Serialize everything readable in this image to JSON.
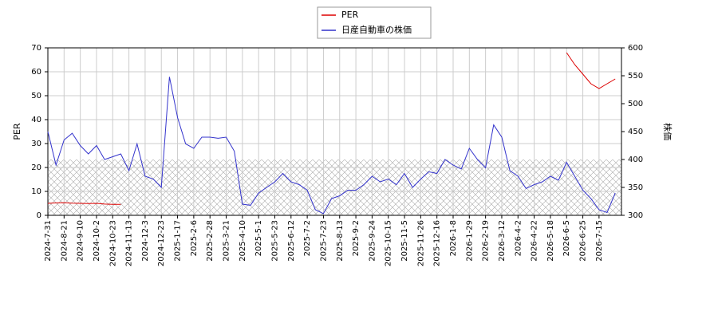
{
  "chart_data": {
    "type": "line",
    "categories": [
      "2024-7-31",
      null,
      "2024-8-21",
      null,
      "2024-9-10",
      null,
      "2024-10-2",
      null,
      "2024-10-23",
      null,
      "2024-11-13",
      null,
      "2024-12-3",
      null,
      "2024-12-23",
      null,
      "2025-1-17",
      null,
      "2025-2-6",
      null,
      "2025-2-28",
      null,
      "2025-3-21",
      null,
      "2025-4-10",
      null,
      "2025-5-1",
      null,
      "2025-5-23",
      null,
      "2025-6-12",
      null,
      "2025-7-2",
      null,
      "2025-7-23",
      null,
      "2025-8-13",
      null,
      "2025-9-2",
      null,
      "2025-9-24",
      null,
      "2025-10-15",
      null,
      "2025-11-5",
      null,
      "2025-11-26",
      null,
      "2025-12-16",
      null,
      "2026-1-8",
      null,
      "2026-1-29",
      null,
      "2026-2-19",
      null,
      "2026-3-12",
      null,
      "2026-4-2",
      null,
      "2026-4-22",
      null,
      "2026-5-18",
      null,
      "2026-6-5",
      null,
      "2026-6-25",
      null,
      "2026-7-15",
      null,
      null
    ],
    "series": [
      {
        "name": "PER",
        "color": "#dd0000",
        "axis": "y",
        "values": [
          5,
          5.2,
          5.3,
          5.1,
          5.0,
          4.9,
          5.0,
          4.7,
          4.6,
          4.6,
          null,
          null,
          null,
          null,
          null,
          null,
          null,
          null,
          null,
          null,
          null,
          null,
          null,
          null,
          null,
          null,
          null,
          null,
          null,
          null,
          null,
          null,
          null,
          null,
          null,
          null,
          null,
          null,
          null,
          null,
          null,
          null,
          null,
          null,
          null,
          null,
          null,
          null,
          null,
          null,
          null,
          null,
          null,
          null,
          null,
          null,
          null,
          null,
          null,
          null,
          null,
          null,
          null,
          null,
          68,
          63,
          59,
          55,
          53,
          55,
          57
        ]
      },
      {
        "name": "日産自動車の株価",
        "color": "#3333cc",
        "axis": "y2",
        "values": [
          450,
          390,
          435,
          447,
          425,
          410,
          425,
          400,
          405,
          410,
          380,
          428,
          370,
          365,
          350,
          548,
          475,
          428,
          420,
          440,
          440,
          438,
          440,
          415,
          320,
          318,
          340,
          350,
          360,
          375,
          360,
          355,
          345,
          310,
          303,
          330,
          335,
          345,
          345,
          355,
          370,
          360,
          365,
          355,
          375,
          350,
          365,
          378,
          375,
          400,
          390,
          383,
          420,
          400,
          385,
          462,
          440,
          380,
          370,
          348,
          355,
          360,
          370,
          363,
          395,
          370,
          345,
          330,
          310,
          305,
          340
        ]
      }
    ],
    "y_label": "PER",
    "y2_label": "株価",
    "ylim": [
      0,
      70
    ],
    "yticks": [
      0,
      10,
      20,
      30,
      40,
      50,
      60,
      70
    ],
    "y2lim": [
      300,
      600
    ],
    "y2ticks": [
      300,
      350,
      400,
      450,
      500,
      550,
      600
    ],
    "band": {
      "axis": "y2",
      "range": [
        300,
        400
      ]
    },
    "grid": true,
    "legend": "top"
  }
}
